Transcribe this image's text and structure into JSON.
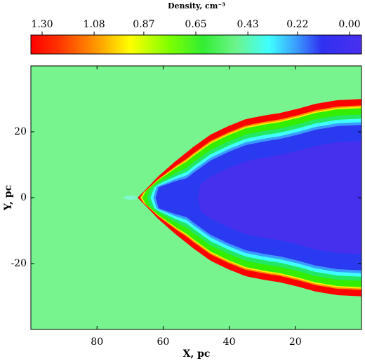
{
  "chart_data": {
    "type": "heatmap",
    "title": "Density, cm⁻³",
    "x_label": "X, pc",
    "y_label": "Y, pc",
    "xlim": [
      100,
      0
    ],
    "ylim": [
      -40,
      40
    ],
    "xticks": [
      80,
      60,
      40,
      20
    ],
    "yticks": [
      -20,
      0,
      20
    ],
    "colorbar_ticks": [
      {
        "value": 1.3,
        "label": "1.30"
      },
      1.08,
      0.87,
      0.65,
      0.43,
      0.22,
      {
        "value": 0,
        "label": "0.00"
      }
    ]
  }
}
